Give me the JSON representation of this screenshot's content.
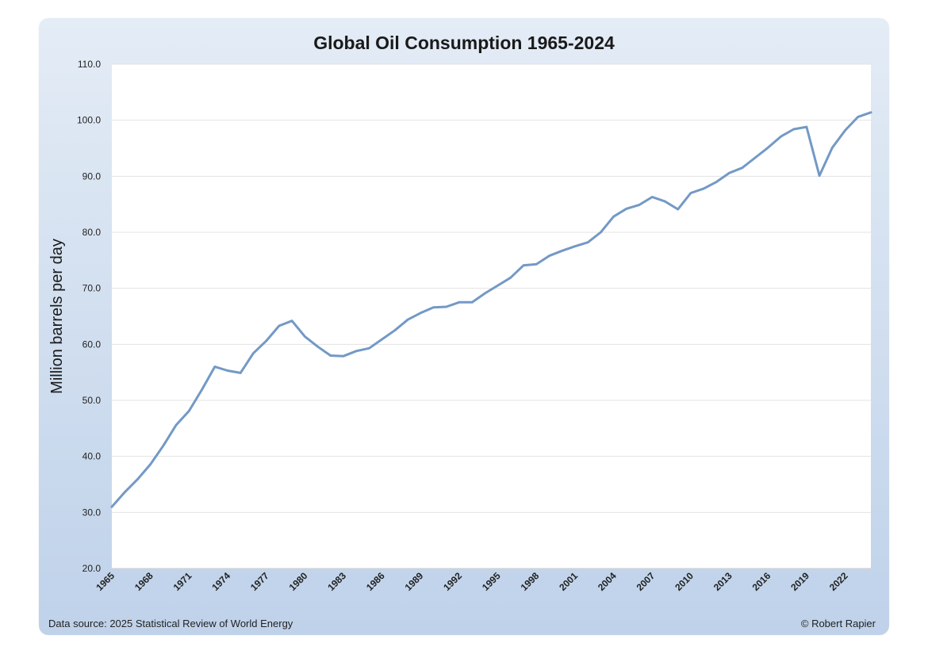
{
  "chart_data": {
    "type": "line",
    "title": "Global Oil Consumption 1965-2024",
    "xlabel": "",
    "ylabel": "Million barrels per day",
    "ylim": [
      20,
      110
    ],
    "yticks": [
      "20.0",
      "30.0",
      "40.0",
      "50.0",
      "60.0",
      "70.0",
      "80.0",
      "90.0",
      "100.0",
      "110.0"
    ],
    "xticks": [
      "1965",
      "1968",
      "1971",
      "1974",
      "1977",
      "1980",
      "1983",
      "1986",
      "1989",
      "1992",
      "1995",
      "1998",
      "2001",
      "2004",
      "2007",
      "2010",
      "2013",
      "2016",
      "2019",
      "2022"
    ],
    "grid": true,
    "legend": "none",
    "line_color": "#7399c6",
    "x": [
      1965,
      1966,
      1967,
      1968,
      1969,
      1970,
      1971,
      1972,
      1973,
      1974,
      1975,
      1976,
      1977,
      1978,
      1979,
      1980,
      1981,
      1982,
      1983,
      1984,
      1985,
      1986,
      1987,
      1988,
      1989,
      1990,
      1991,
      1992,
      1993,
      1994,
      1995,
      1996,
      1997,
      1998,
      1999,
      2000,
      2001,
      2002,
      2003,
      2004,
      2005,
      2006,
      2007,
      2008,
      2009,
      2010,
      2011,
      2012,
      2013,
      2014,
      2015,
      2016,
      2017,
      2018,
      2019,
      2020,
      2021,
      2022,
      2023,
      2024
    ],
    "series": [
      {
        "values": [
          31.0,
          33.6,
          35.9,
          38.6,
          41.9,
          45.6,
          48.1,
          51.9,
          56.0,
          55.3,
          54.9,
          58.4,
          60.6,
          63.3,
          64.2,
          61.4,
          59.6,
          58.0,
          57.9,
          58.8,
          59.3,
          60.9,
          62.5,
          64.4,
          65.6,
          66.6,
          66.7,
          67.5,
          67.5,
          69.1,
          70.5,
          71.9,
          74.1,
          74.3,
          75.8,
          76.7,
          77.5,
          78.2,
          80.0,
          82.8,
          84.2,
          84.9,
          86.3,
          85.5,
          84.1,
          87.0,
          87.8,
          89.0,
          90.6,
          91.5,
          93.3,
          95.1,
          97.1,
          98.4,
          98.8,
          90.1,
          95.1,
          98.2,
          100.6,
          101.4
        ]
      }
    ]
  },
  "footer": {
    "source": "Data source: 2025 Statistical Review of World Energy",
    "credit": "© Robert Rapier"
  }
}
